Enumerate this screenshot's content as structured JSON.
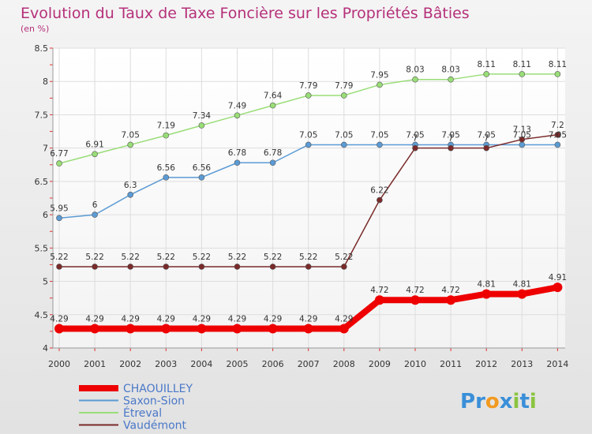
{
  "chart_data": {
    "type": "line",
    "title": "Evolution du Taux de Taxe Foncière sur les Propriétés Bâties",
    "subtitle": "(en %)",
    "x": [
      "2000",
      "2001",
      "2002",
      "2003",
      "2004",
      "2005",
      "2006",
      "2007",
      "2008",
      "2009",
      "2010",
      "2011",
      "2012",
      "2013",
      "2014"
    ],
    "ylim": [
      4,
      8.5
    ],
    "yticks": [
      "4",
      "4.5",
      "5",
      "5.5",
      "6",
      "6.5",
      "7",
      "7.5",
      "8",
      "8.5"
    ],
    "grid": true,
    "legend_position": "bottom-left",
    "series": [
      {
        "name": "CHAOUILLEY",
        "color": "#ee0000",
        "values": [
          4.29,
          4.29,
          4.29,
          4.29,
          4.29,
          4.29,
          4.29,
          4.29,
          4.29,
          4.72,
          4.72,
          4.72,
          4.81,
          4.81,
          4.91
        ],
        "labels": [
          "4.29",
          "4.29",
          "4.29",
          "4.29",
          "4.29",
          "4.29",
          "4.29",
          "4.29",
          "4.29",
          "4.72",
          "4.72",
          "4.72",
          "4.81",
          "4.81",
          "4.91"
        ]
      },
      {
        "name": "Saxon-Sion",
        "color": "#5b9bd5",
        "values": [
          5.95,
          6,
          6.3,
          6.56,
          6.56,
          6.78,
          6.78,
          7.05,
          7.05,
          7.05,
          7.05,
          7.05,
          7.05,
          7.05,
          7.05
        ],
        "labels": [
          "5.95",
          "6",
          "6.3",
          "6.56",
          "6.56",
          "6.78",
          "6.78",
          "7.05",
          "7.05",
          "7.05",
          "7.05",
          "7.05",
          "7.05",
          "7.05",
          "7.05"
        ]
      },
      {
        "name": "Étreval",
        "color": "#99dd77",
        "values": [
          6.77,
          6.91,
          7.05,
          7.19,
          7.34,
          7.49,
          7.64,
          7.79,
          7.79,
          7.95,
          8.03,
          8.03,
          8.11,
          8.11,
          8.11
        ],
        "labels": [
          "6.77",
          "6.91",
          "7.05",
          "7.19",
          "7.34",
          "7.49",
          "7.64",
          "7.79",
          "7.79",
          "7.95",
          "8.03",
          "8.03",
          "8.11",
          "8.11",
          "8.11"
        ]
      },
      {
        "name": "Vaudémont",
        "color": "#7a2a2a",
        "values": [
          5.22,
          5.22,
          5.22,
          5.22,
          5.22,
          5.22,
          5.22,
          5.22,
          5.22,
          6.22,
          7,
          7,
          7,
          7.13,
          7.2
        ],
        "labels": [
          "5.22",
          "5.22",
          "5.22",
          "5.22",
          "5.22",
          "5.22",
          "5.22",
          "5.22",
          "5.22",
          "6.22",
          "7",
          "7",
          "7",
          "7.13",
          "7.2"
        ]
      }
    ]
  },
  "logo": {
    "text": "Proxiti",
    "letters": [
      "P",
      "r",
      "o",
      "x",
      "i",
      "t",
      "i"
    ],
    "colors": [
      "#3a8fd8",
      "#3a8fd8",
      "#f29a1f",
      "#3a8fd8",
      "#8ac43f",
      "#3a8fd8",
      "#8ac43f"
    ]
  }
}
